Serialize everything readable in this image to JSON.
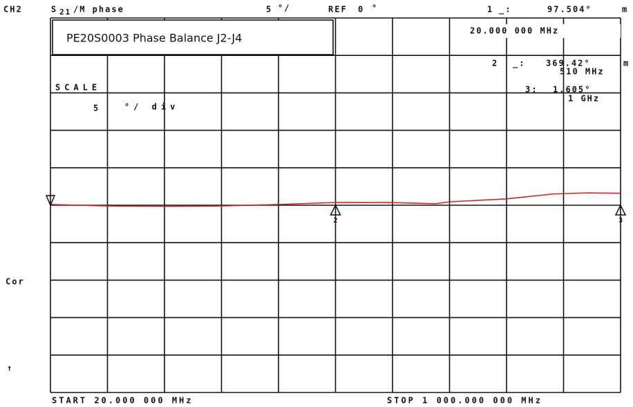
{
  "chart_data": {
    "type": "line",
    "channel": "CH2",
    "measurement": {
      "param": "S",
      "sub": "21",
      "format": "/M phase"
    },
    "header_scale": {
      "value": 5,
      "unit": "°/"
    },
    "ref": {
      "label": "REF",
      "value": 0,
      "unit": "°"
    },
    "title": "PE20S0003 Phase Balance J2-J4",
    "scale": {
      "label": "SCALE",
      "value": 5,
      "unit": "°/ div"
    },
    "readouts": [
      {
        "id": "1",
        "sep": "_:",
        "value": "97.504°",
        "unit": "m",
        "freq": "20.000 000 MHz"
      },
      {
        "id": "2",
        "sep": "_:",
        "value": "369.42°",
        "unit": "m",
        "freq": "510 MHz"
      },
      {
        "id": "3:",
        "value": "1.605°",
        "freq": "1 GHz"
      }
    ],
    "side_labels": [
      "Cor",
      "↑"
    ],
    "start": "START 20.000 000 MHz",
    "stop": "STOP 1 000.000 000 MHz",
    "x": [
      20,
      117,
      216,
      313,
      412,
      510,
      608,
      682,
      705,
      804,
      884,
      943,
      1000
    ],
    "values": [
      0.1,
      -0.1,
      -0.15,
      -0.1,
      0.1,
      0.37,
      0.35,
      0.2,
      0.45,
      0.85,
      1.5,
      1.65,
      1.6
    ],
    "color": "#d42020",
    "xlim": [
      20,
      1000
    ],
    "ylim": [
      -25,
      25
    ],
    "markers": [
      {
        "label": "2",
        "x": 510
      },
      {
        "label": "3",
        "x": 1000
      }
    ]
  }
}
